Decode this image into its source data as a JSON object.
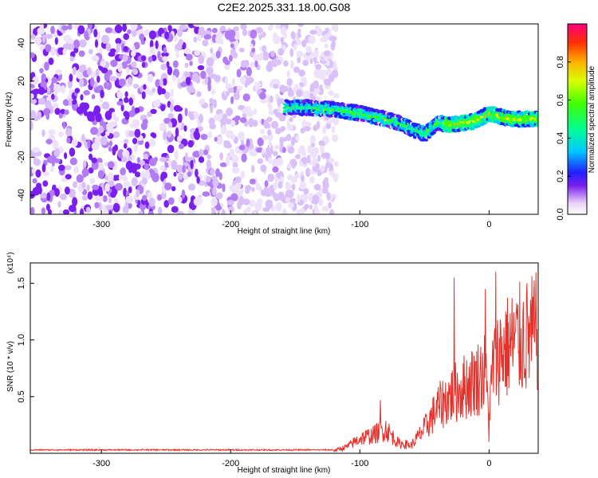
{
  "title": "C2E2.2025.331.18.00.G08",
  "chart_data": [
    {
      "type": "heatmap",
      "name": "spectrogram",
      "xlabel": "Height of straight line (km)",
      "ylabel": "Frequency (Hz)",
      "xlim": [
        -355,
        38
      ],
      "ylim": [
        -50,
        50
      ],
      "x_ticks": [
        -300,
        -200,
        -100,
        0
      ],
      "y_ticks": [
        -40,
        -20,
        0,
        20,
        40
      ],
      "x_tick_labels": [
        "-300",
        "-200",
        "-100",
        "0"
      ],
      "y_tick_labels": [
        "-40",
        "-20",
        "0",
        "20",
        "40"
      ],
      "noise_region": {
        "x_range": [
          -355,
          -118
        ],
        "y_range": [
          -50,
          50
        ]
      },
      "signal_track": {
        "x": [
          -158,
          -140,
          -120,
          -100,
          -80,
          -70,
          -60,
          -50,
          -45,
          -40,
          -30,
          -20,
          -10,
          0,
          10,
          20,
          38
        ],
        "y": [
          6,
          6,
          5,
          3,
          0,
          -2,
          -5,
          -8,
          -5,
          -2,
          -3,
          -2,
          -1,
          3,
          1,
          0,
          0
        ]
      },
      "colorbar": {
        "label": "Normalized spectral amplitude",
        "range": [
          0,
          1
        ],
        "ticks": [
          0.0,
          0.2,
          0.4,
          0.6,
          0.8
        ],
        "tick_labels": [
          "0.0",
          "0.2",
          "0.4",
          "0.6",
          "0.8"
        ]
      }
    },
    {
      "type": "line",
      "name": "snr",
      "xlabel": "Height of straight line (km)",
      "ylabel": "SNR (10 * v/v)",
      "y_multiplier": "(x10⁴)",
      "xlim": [
        -355,
        38
      ],
      "ylim": [
        0,
        1.68
      ],
      "x_ticks": [
        -300,
        -200,
        -100,
        0
      ],
      "y_ticks": [
        0.5,
        1.0,
        1.5
      ],
      "x_tick_labels": [
        "-300",
        "-200",
        "-100",
        "0"
      ],
      "y_tick_labels": [
        "0.5",
        "1.0",
        "1.5"
      ],
      "color": "#e8302a",
      "envelope": {
        "x": [
          -355,
          -250,
          -120,
          -110,
          -100,
          -90,
          -80,
          -70,
          -60,
          -50,
          -40,
          -30,
          -20,
          -10,
          -3,
          0,
          3,
          10,
          20,
          30,
          38
        ],
        "y": [
          0.03,
          0.03,
          0.03,
          0.08,
          0.18,
          0.22,
          0.3,
          0.12,
          0.1,
          0.3,
          0.55,
          0.7,
          0.8,
          0.9,
          1.0,
          0.4,
          1.1,
          1.25,
          1.35,
          1.42,
          1.47
        ]
      },
      "spikes": [
        {
          "x": -84,
          "y": 0.47
        },
        {
          "x": -27,
          "y": 1.55
        },
        {
          "x": -3,
          "y": 1.45
        },
        {
          "x": 0,
          "y": 1.68
        },
        {
          "x": 0,
          "y": 0.1
        },
        {
          "x": 5,
          "y": 1.6
        }
      ]
    }
  ]
}
